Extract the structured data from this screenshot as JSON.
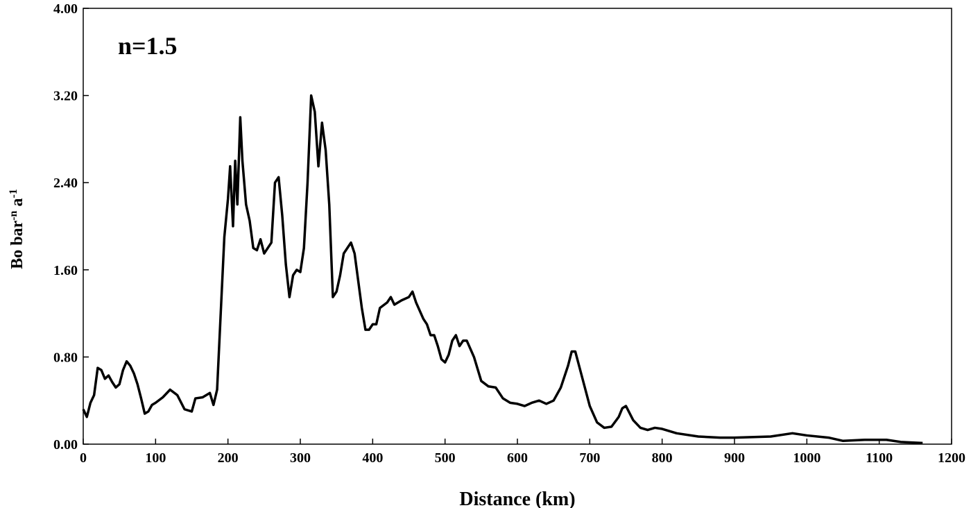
{
  "chart_data": {
    "type": "line",
    "x_label": "Distance (km)",
    "y_label": [
      "Bo bar",
      "-n",
      " a",
      "-1"
    ],
    "annotation": "n=1.5",
    "color": "#000000",
    "xlim": [
      0,
      1200
    ],
    "xticks": [
      0,
      100,
      200,
      300,
      400,
      500,
      600,
      700,
      800,
      900,
      1000,
      1100,
      1200
    ],
    "ylim": [
      0,
      4
    ],
    "yticks": [
      {
        "value": 0,
        "label": "0.00"
      },
      {
        "value": 0.8,
        "label": "0.80"
      },
      {
        "value": 1.6,
        "label": "1.60"
      },
      {
        "value": 2.4,
        "label": "2.40"
      },
      {
        "value": 3.2,
        "label": "3.20"
      },
      {
        "value": 4,
        "label": "4.00"
      }
    ],
    "x": [
      0,
      5,
      10,
      15,
      20,
      25,
      30,
      35,
      40,
      45,
      50,
      55,
      60,
      65,
      70,
      75,
      80,
      85,
      90,
      95,
      100,
      110,
      120,
      130,
      140,
      150,
      155,
      165,
      175,
      180,
      185,
      190,
      195,
      200,
      203,
      207,
      210,
      213,
      217,
      220,
      225,
      230,
      235,
      240,
      245,
      250,
      260,
      265,
      270,
      275,
      280,
      285,
      290,
      295,
      300,
      305,
      310,
      315,
      320,
      325,
      330,
      335,
      340,
      345,
      350,
      355,
      360,
      365,
      370,
      375,
      380,
      385,
      390,
      395,
      400,
      405,
      410,
      420,
      425,
      430,
      440,
      450,
      455,
      460,
      470,
      475,
      480,
      485,
      490,
      495,
      500,
      505,
      510,
      515,
      520,
      525,
      530,
      540,
      550,
      560,
      570,
      580,
      590,
      600,
      610,
      620,
      630,
      640,
      650,
      660,
      670,
      675,
      680,
      690,
      700,
      710,
      720,
      730,
      740,
      745,
      750,
      760,
      770,
      780,
      790,
      800,
      820,
      850,
      880,
      900,
      950,
      980,
      1000,
      1030,
      1050,
      1080,
      1110,
      1130,
      1160
    ],
    "values": [
      0.32,
      0.25,
      0.38,
      0.45,
      0.7,
      0.68,
      0.6,
      0.63,
      0.57,
      0.52,
      0.55,
      0.68,
      0.76,
      0.72,
      0.65,
      0.55,
      0.42,
      0.28,
      0.3,
      0.36,
      0.38,
      0.43,
      0.5,
      0.45,
      0.32,
      0.3,
      0.42,
      0.43,
      0.47,
      0.36,
      0.5,
      1.2,
      1.9,
      2.25,
      2.55,
      2.0,
      2.6,
      2.2,
      3.0,
      2.6,
      2.2,
      2.05,
      1.8,
      1.78,
      1.88,
      1.75,
      1.85,
      2.4,
      2.45,
      2.1,
      1.65,
      1.35,
      1.55,
      1.6,
      1.58,
      1.8,
      2.4,
      3.2,
      3.05,
      2.55,
      2.95,
      2.7,
      2.2,
      1.35,
      1.4,
      1.55,
      1.75,
      1.8,
      1.85,
      1.75,
      1.5,
      1.25,
      1.05,
      1.05,
      1.1,
      1.1,
      1.25,
      1.3,
      1.35,
      1.28,
      1.32,
      1.35,
      1.4,
      1.3,
      1.15,
      1.1,
      1.0,
      1.0,
      0.9,
      0.78,
      0.75,
      0.82,
      0.95,
      1.0,
      0.9,
      0.95,
      0.95,
      0.8,
      0.58,
      0.53,
      0.52,
      0.42,
      0.38,
      0.37,
      0.35,
      0.38,
      0.4,
      0.37,
      0.4,
      0.52,
      0.72,
      0.85,
      0.85,
      0.6,
      0.35,
      0.2,
      0.15,
      0.16,
      0.25,
      0.33,
      0.35,
      0.22,
      0.15,
      0.13,
      0.15,
      0.14,
      0.1,
      0.07,
      0.06,
      0.06,
      0.07,
      0.1,
      0.08,
      0.06,
      0.03,
      0.04,
      0.04,
      0.02,
      0.01
    ]
  }
}
